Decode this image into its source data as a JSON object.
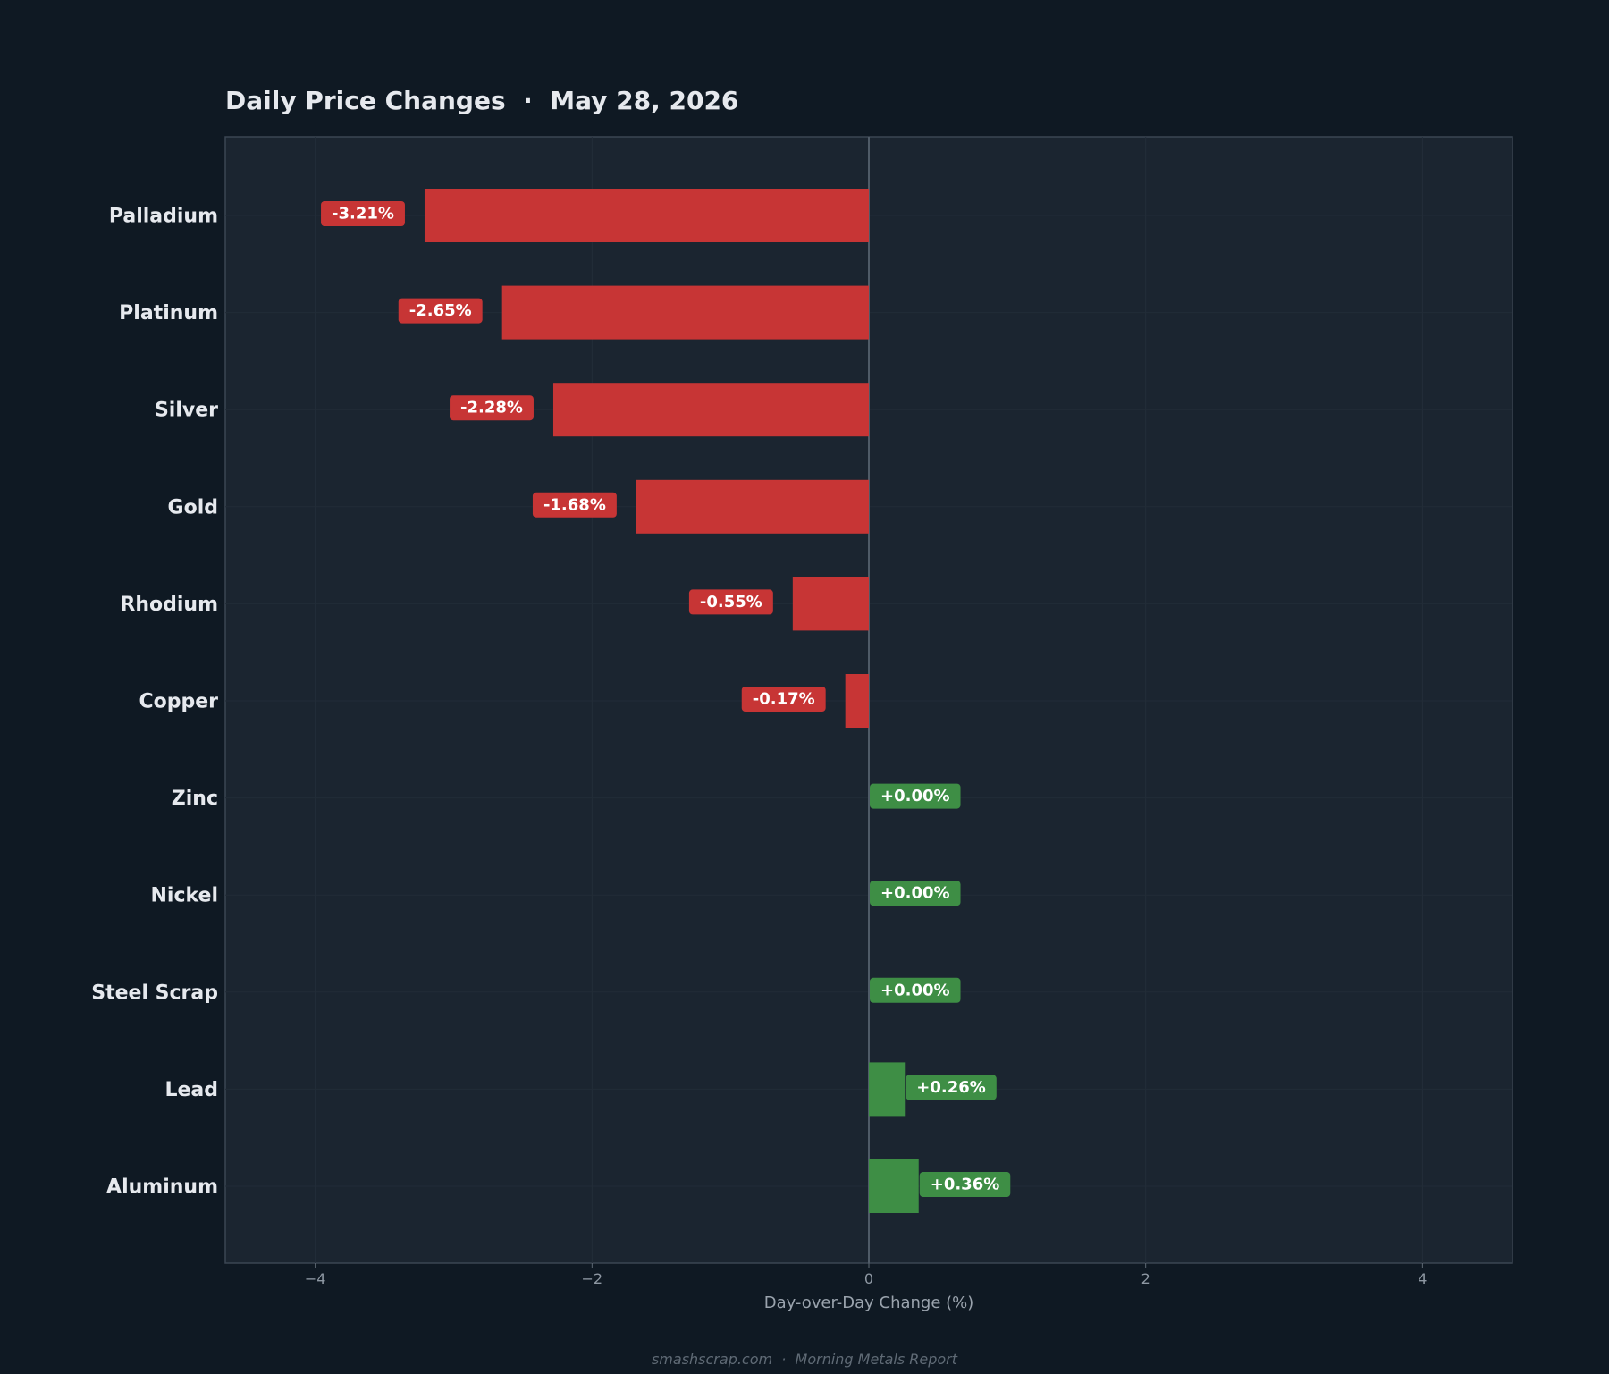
{
  "chart_data": {
    "type": "bar",
    "orientation": "horizontal",
    "title": "Daily Price Changes  ·  May 28, 2026",
    "categories": [
      "Palladium",
      "Platinum",
      "Silver",
      "Gold",
      "Rhodium",
      "Copper",
      "Zinc",
      "Nickel",
      "Steel Scrap",
      "Lead",
      "Aluminum"
    ],
    "values": [
      -3.21,
      -2.65,
      -2.28,
      -1.68,
      -0.55,
      -0.17,
      0.0,
      0.0,
      0.0,
      0.26,
      0.36
    ],
    "value_labels": [
      "-3.21%",
      "-2.65%",
      "-2.28%",
      "-1.68%",
      "-0.55%",
      "-0.17%",
      "+0.00%",
      "+0.00%",
      "+0.00%",
      "+0.26%",
      "+0.36%"
    ],
    "xlabel": "Day-over-Day Change (%)",
    "ylabel": "",
    "xlim": [
      -4.65,
      4.65
    ],
    "xticks": [
      -4,
      -2,
      0,
      2,
      4
    ],
    "xtick_labels": [
      "−4",
      "−2",
      "0",
      "2",
      "4"
    ],
    "grid": true,
    "colors": {
      "negative": "#c73535",
      "positive": "#3e8e45",
      "page_background": "#0f1923",
      "plot_background": "#1b2530",
      "plot_border": "#3b4653",
      "zero_line": "#4f5b67"
    }
  },
  "footer": "smashscrap.com  ·  Morning Metals Report"
}
